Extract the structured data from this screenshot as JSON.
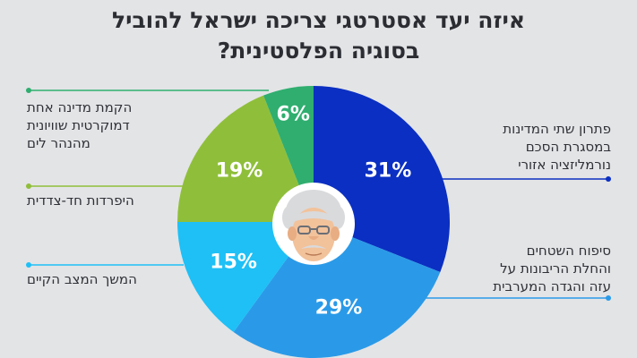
{
  "title": {
    "line1": "איזה יעד אסטרטגי צריכה ישראל להוביל",
    "line2": "בסוגיה הפלסטינית?"
  },
  "colors": {
    "background": "#e3e4e6",
    "slice_two_state": "#0a2fc2",
    "slice_annexation": "#2a9ae8",
    "slice_status_quo": "#1ec0f6",
    "slice_separation": "#8fbf3a",
    "slice_one_state": "#2fae6f",
    "illustration": "old-man-face-icon"
  },
  "chart_data": {
    "type": "pie",
    "title": "איזה יעד אסטרטגי צריכה ישראל להוביל בסוגיה הפלסטינית?",
    "slices": [
      {
        "label": "פתרון שתי המדינות במסגרת הסכם נורמליזציה אזורי",
        "value": 31,
        "value_label": "31%"
      },
      {
        "label": "סיפוח השטחים והחלת הריבונות על עזה והגדה המערבית",
        "value": 29,
        "value_label": "29%"
      },
      {
        "label": "המשך המצב הקיים",
        "value": 15,
        "value_label": "15%"
      },
      {
        "label": "היפרדות חד-צדדית",
        "value": 19,
        "value_label": "19%"
      },
      {
        "label": "הקמת מדינה אחת דמוקרטית שוויונית מהנהר לים",
        "value": 6,
        "value_label": "6%"
      }
    ]
  },
  "labels": {
    "two_state": [
      "פתרון שתי המדינות",
      "במסגרת הסכם",
      "נורמליזציה אזורי"
    ],
    "annexation": [
      "סיפוח השטחים",
      "והחלת הריבונות על",
      "עזה והגדה המערבית"
    ],
    "status_quo": [
      "המשך המצב הקיים"
    ],
    "separation": [
      "היפרדות חד-צדדית"
    ],
    "one_state": [
      "הקמת מדינה אחת",
      "דמוקרטית שוויונית",
      "מהנהר לים"
    ]
  }
}
